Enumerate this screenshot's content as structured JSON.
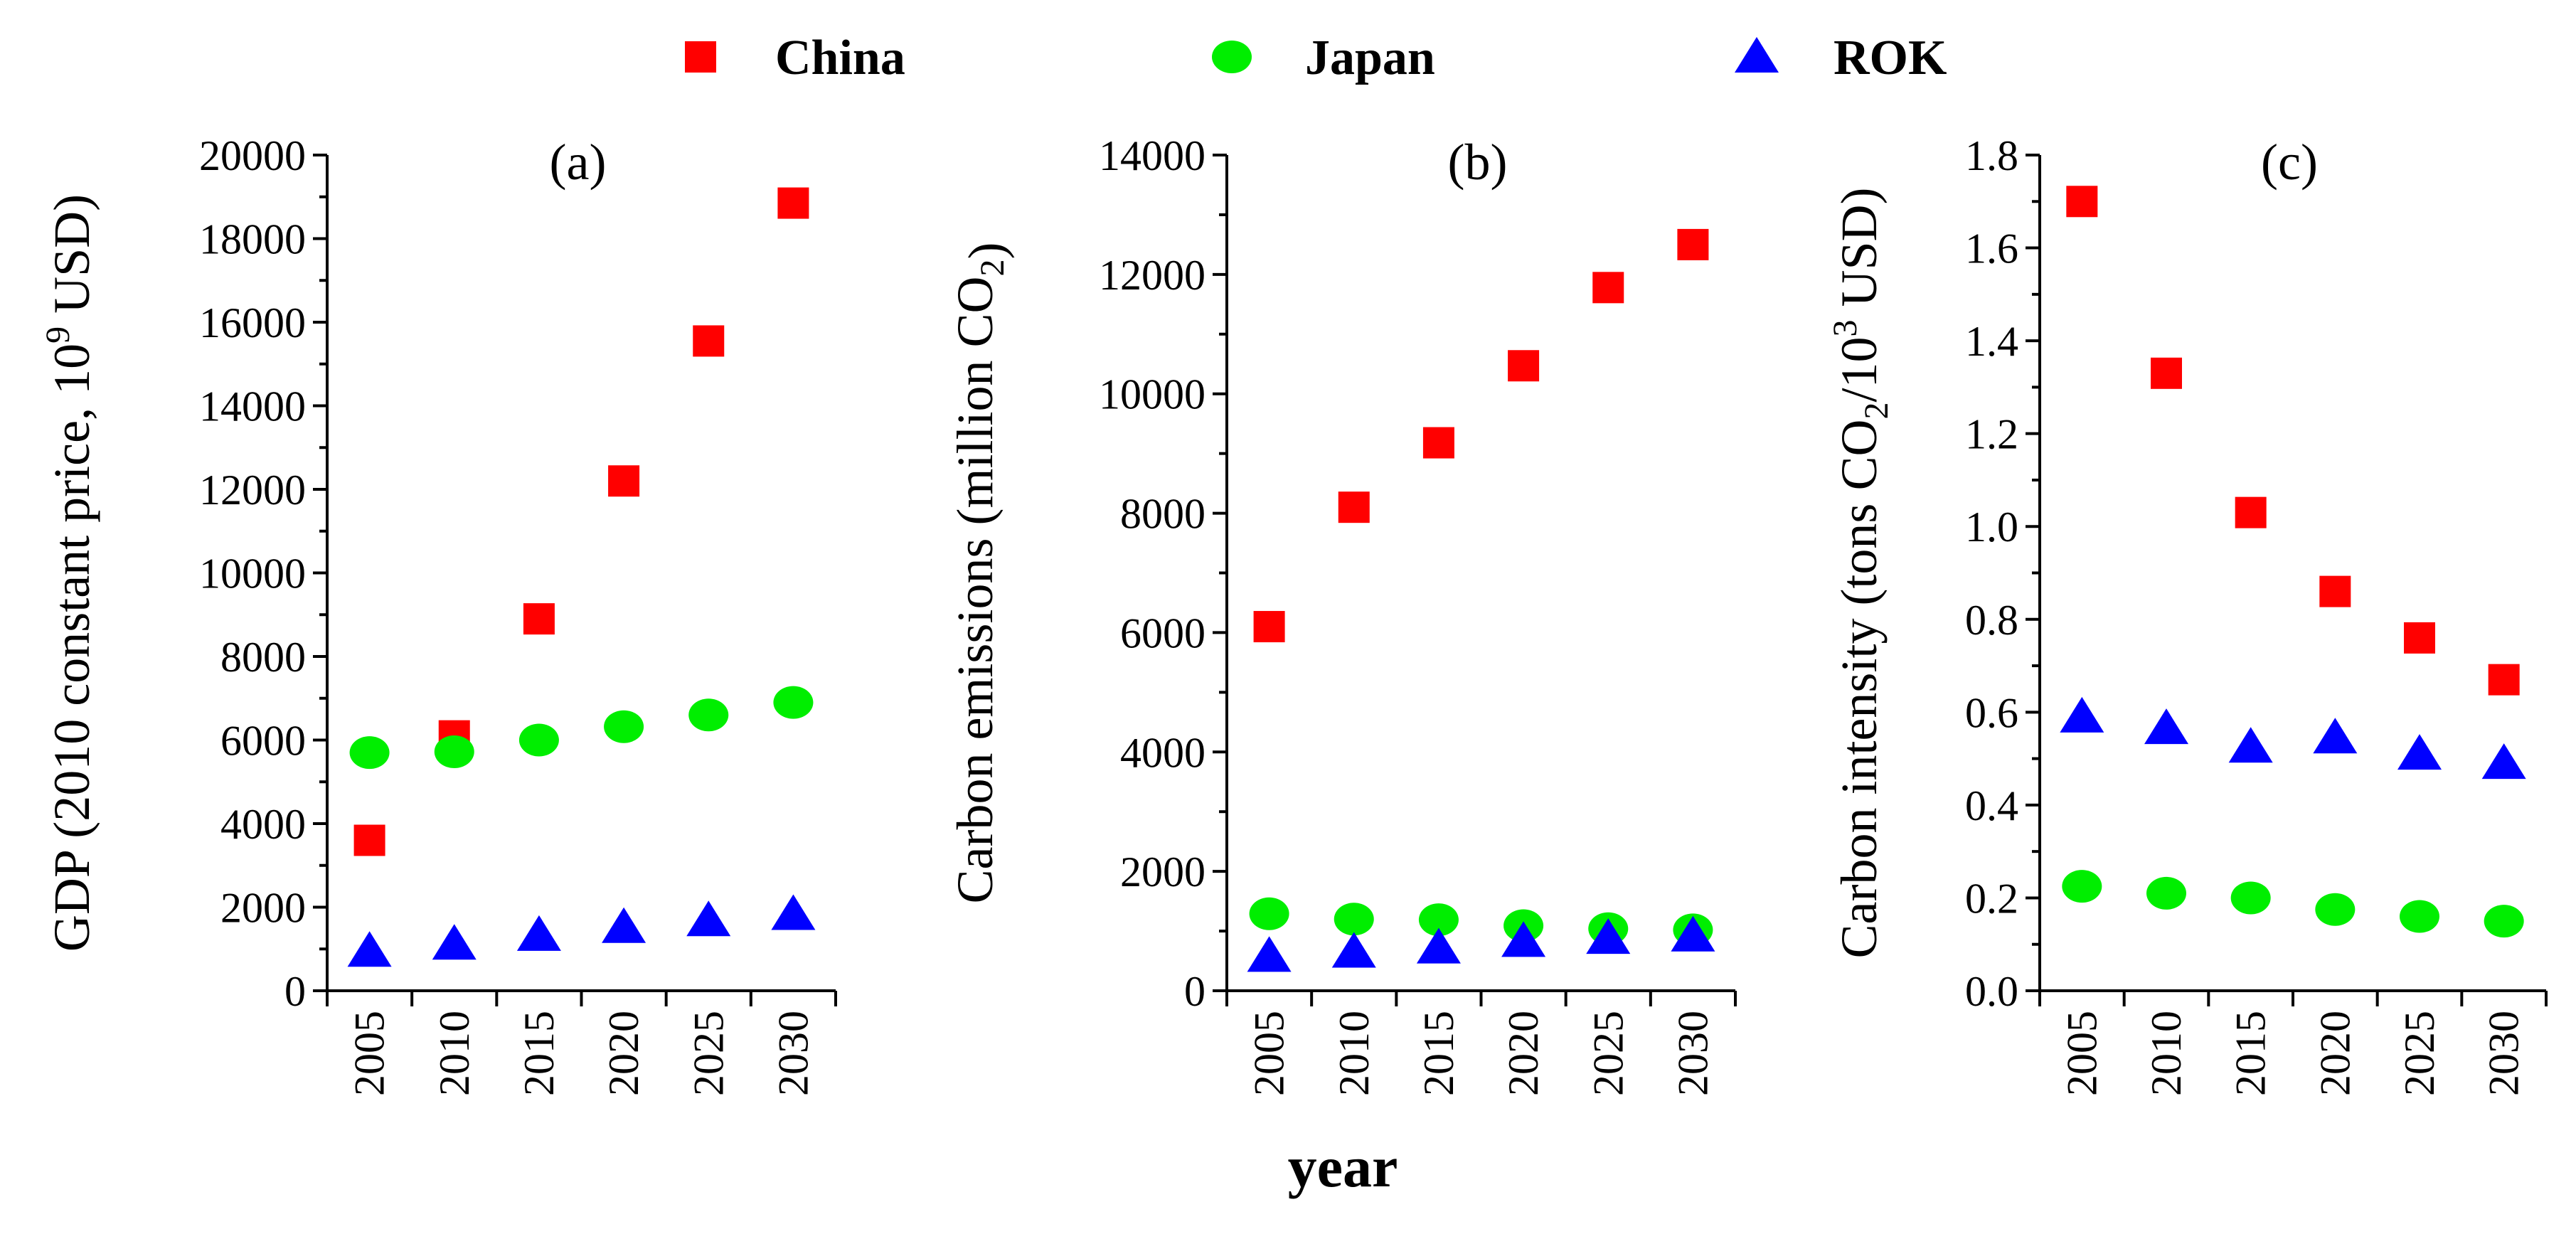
{
  "chart_data": [
    {
      "type": "scatter",
      "panel_label": "(a)",
      "ylabel": "GDP (2010 constant price, 10",
      "ylabel_sup": "9",
      "ylabel_end": " USD)",
      "categories": [
        "2005",
        "2010",
        "2015",
        "2020",
        "2025",
        "2030"
      ],
      "ylim": [
        0,
        20000
      ],
      "yticks": [
        "0",
        "2000",
        "4000",
        "6000",
        "8000",
        "10000",
        "12000",
        "14000",
        "16000",
        "18000",
        "20000"
      ],
      "series": [
        {
          "name": "China",
          "values": [
            3600,
            6100,
            8900,
            12200,
            15550,
            18850
          ]
        },
        {
          "name": "Japan",
          "values": [
            5700,
            5720,
            6000,
            6320,
            6600,
            6900
          ]
        },
        {
          "name": "ROK",
          "values": [
            950,
            1120,
            1330,
            1520,
            1680,
            1830
          ]
        }
      ]
    },
    {
      "type": "scatter",
      "panel_label": "(b)",
      "ylabel": "Carbon emissions (million CO",
      "ylabel_sub": "2",
      "ylabel_end": ")",
      "categories": [
        "2005",
        "2010",
        "2015",
        "2020",
        "2025",
        "2030"
      ],
      "ylim": [
        0,
        14000
      ],
      "yticks": [
        "0",
        "2000",
        "4000",
        "6000",
        "8000",
        "10000",
        "12000",
        "14000"
      ],
      "series": [
        {
          "name": "China",
          "values": [
            6100,
            8100,
            9180,
            10470,
            11780,
            12500
          ]
        },
        {
          "name": "Japan",
          "values": [
            1290,
            1200,
            1190,
            1090,
            1040,
            1020
          ]
        },
        {
          "name": "ROK",
          "values": [
            580,
            650,
            720,
            830,
            880,
            920
          ]
        }
      ]
    },
    {
      "type": "scatter",
      "panel_label": "(c)",
      "ylabel": "Carbon intensity (tons CO",
      "ylabel_sub": "2",
      "ylabel_mid": "/10",
      "ylabel_sup": "3",
      "ylabel_end": " USD)",
      "categories": [
        "2005",
        "2010",
        "2015",
        "2020",
        "2025",
        "2030"
      ],
      "ylim": [
        0,
        1.8
      ],
      "yticks": [
        "0.0",
        "0.2",
        "0.4",
        "0.6",
        "0.8",
        "1.0",
        "1.2",
        "1.4",
        "1.6",
        "1.8"
      ],
      "series": [
        {
          "name": "China",
          "values": [
            1.7,
            1.33,
            1.03,
            0.86,
            0.76,
            0.67
          ]
        },
        {
          "name": "Japan",
          "values": [
            0.225,
            0.21,
            0.2,
            0.175,
            0.16,
            0.15
          ]
        },
        {
          "name": "ROK",
          "values": [
            0.59,
            0.565,
            0.525,
            0.545,
            0.51,
            0.49
          ]
        }
      ]
    }
  ],
  "legend": [
    {
      "name": "China",
      "marker": "square",
      "color": "#ff0000"
    },
    {
      "name": "Japan",
      "marker": "circle",
      "color": "#00ee00"
    },
    {
      "name": "ROK",
      "marker": "triangle",
      "color": "#0000ff"
    }
  ],
  "xlabel": "year"
}
